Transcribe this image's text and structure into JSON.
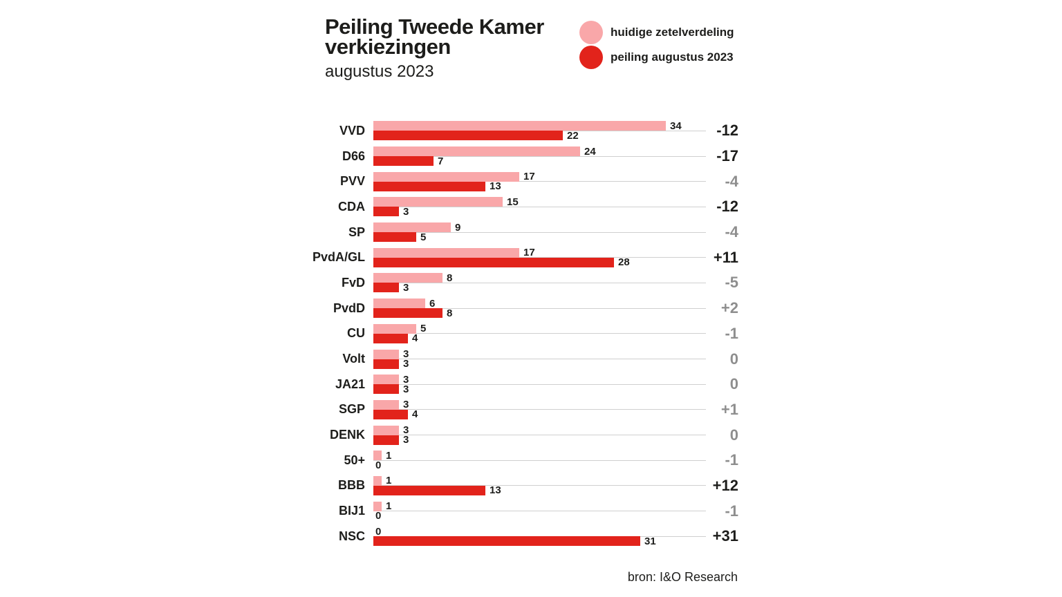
{
  "title": {
    "line1": "Peiling Tweede Kamer",
    "line2": "verkiezingen",
    "subtitle": "augustus 2023"
  },
  "legend": {
    "items": [
      {
        "label": "huidige zetelverdeling",
        "color": "#F9A7A9"
      },
      {
        "label": "peiling augustus 2023",
        "color": "#E2231B"
      }
    ]
  },
  "source": "bron: I&O Research",
  "colors": {
    "pink": "#F9A7A9",
    "red": "#E2231B",
    "delta_strong": "#1D1D1B",
    "delta_muted": "#8E8E8E",
    "gridline": "#CFCFCF",
    "value_text": "#1D1D1B"
  },
  "chart_data": {
    "type": "bar",
    "orientation": "horizontal",
    "title": "Peiling Tweede Kamer verkiezingen",
    "subtitle": "augustus 2023",
    "legend_position": "top-right",
    "series_names": [
      "huidige zetelverdeling",
      "peiling augustus 2023"
    ],
    "x_axis": {
      "unit": "zetels",
      "min": 0,
      "max": 34
    },
    "grid": true,
    "rows": [
      {
        "party": "VVD",
        "current": 34,
        "poll": 22,
        "delta": "-12",
        "delta_emphasis": true
      },
      {
        "party": "D66",
        "current": 24,
        "poll": 7,
        "delta": "-17",
        "delta_emphasis": true
      },
      {
        "party": "PVV",
        "current": 17,
        "poll": 13,
        "delta": "-4",
        "delta_emphasis": false
      },
      {
        "party": "CDA",
        "current": 15,
        "poll": 3,
        "delta": "-12",
        "delta_emphasis": true
      },
      {
        "party": "SP",
        "current": 9,
        "poll": 5,
        "delta": "-4",
        "delta_emphasis": false
      },
      {
        "party": "PvdA/GL",
        "current": 17,
        "poll": 28,
        "delta": "+11",
        "delta_emphasis": true
      },
      {
        "party": "FvD",
        "current": 8,
        "poll": 3,
        "delta": "-5",
        "delta_emphasis": false
      },
      {
        "party": "PvdD",
        "current": 6,
        "poll": 8,
        "delta": "+2",
        "delta_emphasis": false
      },
      {
        "party": "CU",
        "current": 5,
        "poll": 4,
        "delta": "-1",
        "delta_emphasis": false
      },
      {
        "party": "Volt",
        "current": 3,
        "poll": 3,
        "delta": "0",
        "delta_emphasis": false
      },
      {
        "party": "JA21",
        "current": 3,
        "poll": 3,
        "delta": "0",
        "delta_emphasis": false
      },
      {
        "party": "SGP",
        "current": 3,
        "poll": 4,
        "delta": "+1",
        "delta_emphasis": false
      },
      {
        "party": "DENK",
        "current": 3,
        "poll": 3,
        "delta": "0",
        "delta_emphasis": false
      },
      {
        "party": "50+",
        "current": 1,
        "poll": 0,
        "delta": "-1",
        "delta_emphasis": false
      },
      {
        "party": "BBB",
        "current": 1,
        "poll": 13,
        "delta": "+12",
        "delta_emphasis": true
      },
      {
        "party": "BIJ1",
        "current": 1,
        "poll": 0,
        "delta": "-1",
        "delta_emphasis": false
      },
      {
        "party": "NSC",
        "current": 0,
        "poll": 31,
        "delta": "+31",
        "delta_emphasis": true
      }
    ]
  }
}
